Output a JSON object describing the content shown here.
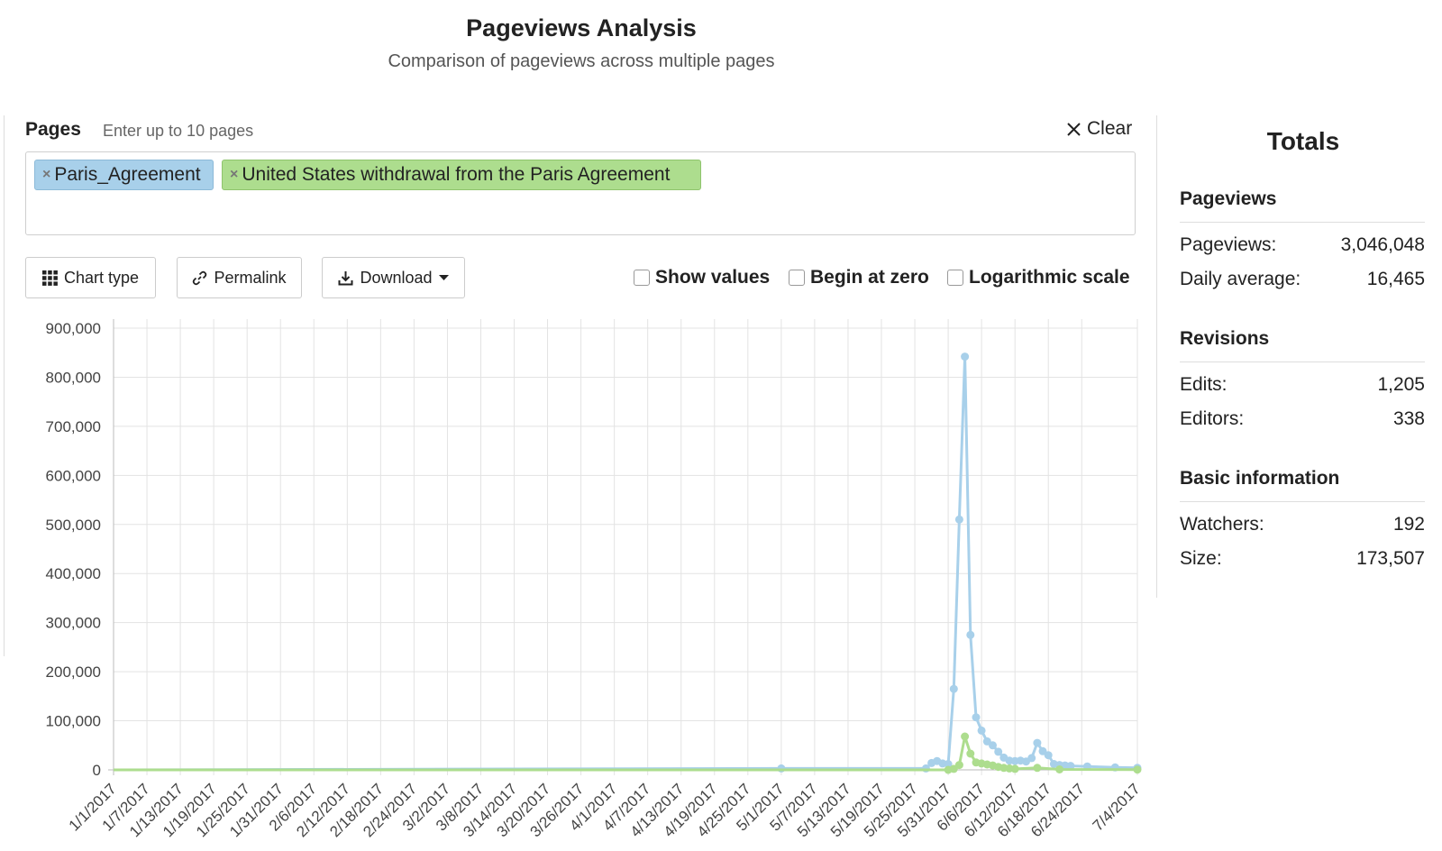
{
  "header": {
    "title": "Pageviews Analysis",
    "subtitle": "Comparison of pageviews across multiple pages"
  },
  "pages": {
    "label": "Pages",
    "hint": "Enter up to 10 pages",
    "clear_label": "Clear",
    "tags": [
      {
        "remove": "×",
        "label": "Paris_Agreement",
        "color": "#a8d0ea"
      },
      {
        "remove": "×",
        "label": "United States withdrawal from the Paris Agreement",
        "color": "#addd8e"
      }
    ]
  },
  "toolbar": {
    "chart_type_label": "Chart type",
    "permalink_label": "Permalink",
    "download_label": "Download",
    "options": [
      {
        "label": "Show values",
        "checked": false
      },
      {
        "label": "Begin at zero",
        "checked": false
      },
      {
        "label": "Logarithmic scale",
        "checked": false
      }
    ]
  },
  "chart_data": {
    "type": "line",
    "title": "",
    "xlabel": "",
    "ylabel": "",
    "ylim": [
      0,
      900000
    ],
    "y_ticks": [
      "0",
      "100,000",
      "200,000",
      "300,000",
      "400,000",
      "500,000",
      "600,000",
      "700,000",
      "800,000",
      "900,000"
    ],
    "x_tick_labels": [
      "1/1/2017",
      "1/7/2017",
      "1/13/2017",
      "1/19/2017",
      "1/25/2017",
      "1/31/2017",
      "2/6/2017",
      "2/12/2017",
      "2/18/2017",
      "2/24/2017",
      "3/2/2017",
      "3/8/2017",
      "3/14/2017",
      "3/20/2017",
      "3/26/2017",
      "4/1/2017",
      "4/7/2017",
      "4/13/2017",
      "4/19/2017",
      "4/25/2017",
      "5/1/2017",
      "5/7/2017",
      "5/13/2017",
      "5/19/2017",
      "5/25/2017",
      "5/31/2017",
      "6/6/2017",
      "6/12/2017",
      "6/18/2017",
      "6/24/2017",
      "7/4/2017"
    ],
    "grid": true,
    "series": [
      {
        "name": "Paris_Agreement",
        "color": "#a8d0ea",
        "points": [
          [
            "5/1/2017",
            3000
          ],
          [
            "5/27/2017",
            3000
          ],
          [
            "5/28/2017",
            14000
          ],
          [
            "5/29/2017",
            18000
          ],
          [
            "5/30/2017",
            13000
          ],
          [
            "5/31/2017",
            12000
          ],
          [
            "6/1/2017",
            165000
          ],
          [
            "6/2/2017",
            510000
          ],
          [
            "6/3/2017",
            842000
          ],
          [
            "6/4/2017",
            275000
          ],
          [
            "6/5/2017",
            107000
          ],
          [
            "6/6/2017",
            80000
          ],
          [
            "6/7/2017",
            58000
          ],
          [
            "6/8/2017",
            50000
          ],
          [
            "6/9/2017",
            37000
          ],
          [
            "6/10/2017",
            25000
          ],
          [
            "6/11/2017",
            19000
          ],
          [
            "6/12/2017",
            18000
          ],
          [
            "6/13/2017",
            19000
          ],
          [
            "6/14/2017",
            17000
          ],
          [
            "6/15/2017",
            24000
          ],
          [
            "6/16/2017",
            55000
          ],
          [
            "6/17/2017",
            38000
          ],
          [
            "6/18/2017",
            30000
          ],
          [
            "6/19/2017",
            12000
          ],
          [
            "6/20/2017",
            10000
          ],
          [
            "6/21/2017",
            9000
          ],
          [
            "6/22/2017",
            8000
          ],
          [
            "6/25/2017",
            7000
          ],
          [
            "6/30/2017",
            5000
          ],
          [
            "7/4/2017",
            4000
          ]
        ]
      },
      {
        "name": "United States withdrawal from the Paris Agreement",
        "color": "#addd8e",
        "points": [
          [
            "5/31/2017",
            0
          ],
          [
            "6/1/2017",
            2000
          ],
          [
            "6/2/2017",
            10000
          ],
          [
            "6/3/2017",
            68000
          ],
          [
            "6/4/2017",
            33000
          ],
          [
            "6/5/2017",
            15000
          ],
          [
            "6/6/2017",
            13000
          ],
          [
            "6/7/2017",
            11000
          ],
          [
            "6/8/2017",
            9000
          ],
          [
            "6/9/2017",
            6000
          ],
          [
            "6/10/2017",
            4000
          ],
          [
            "6/11/2017",
            3000
          ],
          [
            "6/12/2017",
            2000
          ],
          [
            "6/16/2017",
            4000
          ],
          [
            "6/20/2017",
            1000
          ],
          [
            "7/4/2017",
            500
          ]
        ]
      }
    ]
  },
  "totals": {
    "title": "Totals",
    "sections": [
      {
        "title": "Pageviews",
        "rows": [
          {
            "label": "Pageviews:",
            "value": "3,046,048"
          },
          {
            "label": "Daily average:",
            "value": "16,465"
          }
        ]
      },
      {
        "title": "Revisions",
        "rows": [
          {
            "label": "Edits:",
            "value": "1,205"
          },
          {
            "label": "Editors:",
            "value": "338"
          }
        ]
      },
      {
        "title": "Basic information",
        "rows": [
          {
            "label": "Watchers:",
            "value": "192"
          },
          {
            "label": "Size:",
            "value": "173,507"
          }
        ]
      }
    ]
  }
}
